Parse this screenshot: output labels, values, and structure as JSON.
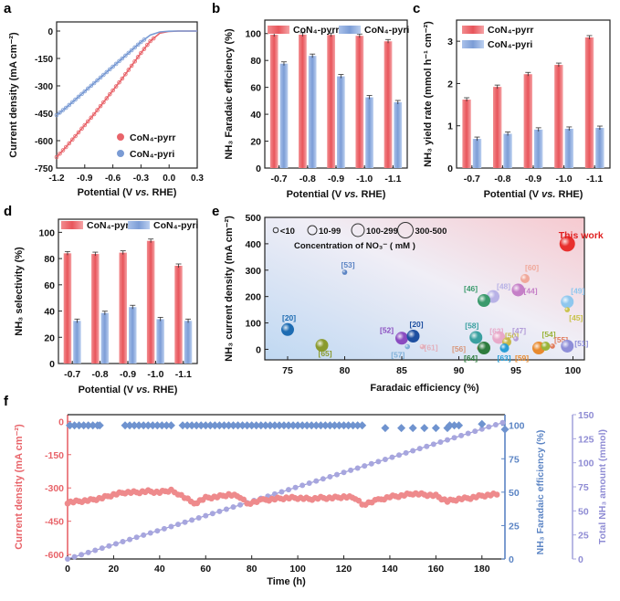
{
  "colors": {
    "red": "#E8646A",
    "blue": "#7A9BD4",
    "lavender": "#A7A6DE",
    "deepblue": "#5B84C4",
    "axis": "#222222"
  },
  "chart_data": [
    {
      "panel": "a",
      "type": "line",
      "xlabel": "Potential (V vs. RHE)",
      "ylabel": "Current density (mA cm⁻²)",
      "xlim": [
        -1.2,
        0.3
      ],
      "ylim": [
        -750,
        50
      ],
      "xticks": [
        -1.2,
        -0.9,
        -0.6,
        -0.3,
        0.0,
        0.3
      ],
      "yticks": [
        0,
        -150,
        -300,
        -450,
        -600,
        -750
      ],
      "series": [
        {
          "name": "CoN₄-pyrr",
          "x": [
            -1.2,
            -1.1,
            -1.0,
            -0.9,
            -0.8,
            -0.7,
            -0.6,
            -0.5,
            -0.4,
            -0.3,
            -0.2,
            -0.1,
            0.0,
            0.1,
            0.2,
            0.3
          ],
          "y": [
            -690,
            -635,
            -575,
            -515,
            -455,
            -390,
            -325,
            -260,
            -190,
            -120,
            -55,
            -12,
            -2,
            0,
            0,
            0
          ]
        },
        {
          "name": "CoN₄-pyri",
          "x": [
            -1.2,
            -1.1,
            -1.0,
            -0.9,
            -0.8,
            -0.7,
            -0.6,
            -0.5,
            -0.4,
            -0.3,
            -0.2,
            -0.1,
            0.0,
            0.1,
            0.2,
            0.3
          ],
          "y": [
            -460,
            -420,
            -375,
            -330,
            -285,
            -240,
            -195,
            -150,
            -105,
            -60,
            -22,
            -5,
            -1,
            0,
            0,
            0
          ]
        }
      ]
    },
    {
      "panel": "b",
      "type": "bar",
      "categories": [
        "-0.7",
        "-0.8",
        "-0.9",
        "-1.0",
        "-1.1"
      ],
      "xlabel": "Potential (V vs. RHE)",
      "ylabel": "NH₃ Faradaic efficiency (%)",
      "ylim": [
        0,
        110
      ],
      "yticks": [
        0,
        20,
        40,
        60,
        80,
        100
      ],
      "series": [
        {
          "name": "CoN₄-pyrr",
          "values": [
            99.1,
            99.2,
            99.0,
            98.3,
            94.2
          ]
        },
        {
          "name": "CoN₄-pyri",
          "values": [
            77.6,
            83.4,
            68.2,
            52.6,
            48.9
          ]
        }
      ]
    },
    {
      "panel": "c",
      "type": "bar",
      "categories": [
        "-0.7",
        "-0.8",
        "-0.9",
        "-1.0",
        "-1.1"
      ],
      "xlabel": "Potential (V vs. RHE)",
      "ylabel": "NH₃ yield rate (mmol h⁻¹ cm⁻²)",
      "ylim": [
        0,
        3.5
      ],
      "yticks": [
        0,
        1,
        2,
        3
      ],
      "series": [
        {
          "name": "CoN₄-pyrr",
          "values": [
            1.62,
            1.92,
            2.22,
            2.44,
            3.09
          ]
        },
        {
          "name": "CoN₄-pyri",
          "values": [
            0.69,
            0.81,
            0.91,
            0.93,
            0.95
          ]
        }
      ]
    },
    {
      "panel": "d",
      "type": "bar",
      "categories": [
        "-0.7",
        "-0.8",
        "-0.9",
        "-1.0",
        "-1.1"
      ],
      "xlabel": "Potential (V vs. RHE)",
      "ylabel": "NH₃ selectivity (%)",
      "ylim": [
        0,
        110
      ],
      "yticks": [
        0,
        20,
        40,
        60,
        80,
        100
      ],
      "series": [
        {
          "name": "CoN₄-pyrr",
          "values": [
            84.0,
            83.5,
            84.5,
            93.5,
            74.5
          ]
        },
        {
          "name": "CoN₄-pyri",
          "values": [
            32.5,
            38.5,
            43.0,
            33.8,
            32.5
          ]
        }
      ]
    },
    {
      "panel": "e",
      "type": "scatter",
      "xlabel": "Faradaic efficiency (%)",
      "ylabel": "NH₃ current density (mA cm⁻²)",
      "xlim": [
        73,
        101
      ],
      "ylim": [
        -40,
        500
      ],
      "xticks": [
        75,
        80,
        85,
        90,
        95,
        100
      ],
      "yticks": [
        0,
        100,
        200,
        300,
        400,
        500
      ],
      "size_legend": [
        "<10",
        "10-99",
        "100-299",
        "300-500"
      ],
      "size_legend_title": "Concentration of NO₃⁻ ( mM )",
      "points": [
        {
          "label": "This work",
          "x": 99.5,
          "y": 400,
          "size": 4,
          "color": "#E8302E"
        },
        {
          "label": "[53]",
          "x": 80,
          "y": 292,
          "size": 1,
          "color": "#5B84C4"
        },
        {
          "label": "[60]",
          "x": 95.8,
          "y": 268,
          "size": 2,
          "color": "#F0A89A"
        },
        {
          "label": "[48]",
          "x": 93.0,
          "y": 200,
          "size": 3,
          "color": "#B8B2E6"
        },
        {
          "label": "[46]",
          "x": 92.2,
          "y": 185,
          "size": 3,
          "color": "#3A9A6C"
        },
        {
          "label": "[44]",
          "x": 95.2,
          "y": 225,
          "size": 3,
          "color": "#C57FC7"
        },
        {
          "label": "[49]",
          "x": 99.5,
          "y": 180,
          "size": 3,
          "color": "#8FC7EE"
        },
        {
          "label": "[45]",
          "x": 99.5,
          "y": 150,
          "size": 1,
          "color": "#C9C24A"
        },
        {
          "label": "[20]",
          "x": 75.0,
          "y": 75,
          "size": 3,
          "color": "#1E6CB2"
        },
        {
          "label": "[65]",
          "x": 78.0,
          "y": 15,
          "size": 3,
          "color": "#8A9A2E"
        },
        {
          "label": "[52]",
          "x": 85.0,
          "y": 42,
          "size": 3,
          "color": "#8A4CC0"
        },
        {
          "label": "[20]",
          "x": 86.0,
          "y": 50,
          "size": 3,
          "color": "#1E4FA0"
        },
        {
          "label": "[57]",
          "x": 85.5,
          "y": 10,
          "size": 1,
          "color": "#7FB0D8"
        },
        {
          "label": "[61]",
          "x": 86.8,
          "y": 10,
          "size": 1,
          "color": "#E2B0BC"
        },
        {
          "label": "[58]",
          "x": 91.5,
          "y": 45,
          "size": 3,
          "color": "#3AA0A0"
        },
        {
          "label": "[62]",
          "x": 93.5,
          "y": 45,
          "size": 3,
          "color": "#E8A9C9"
        },
        {
          "label": "[50]",
          "x": 94.2,
          "y": 28,
          "size": 2,
          "color": "#C8B84A"
        },
        {
          "label": "[47]",
          "x": 95.0,
          "y": 40,
          "size": 1,
          "color": "#B29BD8"
        },
        {
          "label": "[56]",
          "x": 91.8,
          "y": 5,
          "size": 1,
          "color": "#D8967A"
        },
        {
          "label": "[64]",
          "x": 92.2,
          "y": 5,
          "size": 3,
          "color": "#2E7C3E"
        },
        {
          "label": "[63]",
          "x": 94.0,
          "y": 5,
          "size": 2,
          "color": "#2A9ED6"
        },
        {
          "label": "[59]",
          "x": 97.0,
          "y": 5,
          "size": 3,
          "color": "#E88A2E"
        },
        {
          "label": "[54]",
          "x": 97.6,
          "y": 12,
          "size": 2,
          "color": "#9AB43A"
        },
        {
          "label": "[55]",
          "x": 98.2,
          "y": 12,
          "size": 1,
          "color": "#E07A5A"
        },
        {
          "label": "[51]",
          "x": 99.5,
          "y": 12,
          "size": 3,
          "color": "#8E8ED8"
        }
      ]
    },
    {
      "panel": "f",
      "type": "scatter",
      "xlabel": "Time (h)",
      "ylabel_left": "Current density (mA cm⁻²)",
      "ylabel_right1": "NH₃ Faradaic efficiency (%)",
      "ylabel_right2": "Total NH₃ amount (mmol)",
      "xlim": [
        0,
        190
      ],
      "xticks": [
        0,
        20,
        40,
        60,
        80,
        100,
        120,
        140,
        160,
        180
      ],
      "ylim_left": [
        -620,
        30
      ],
      "yticks_left": [
        0,
        -150,
        -300,
        -450,
        -600
      ],
      "ylim_right1": [
        0,
        108
      ],
      "yticks_right1": [
        0,
        25,
        50,
        75,
        100
      ],
      "ylim_right2": [
        0,
        150
      ],
      "yticks_right2": [
        0,
        25,
        50,
        75,
        100,
        125,
        150
      ],
      "current_density": {
        "name": "Current density",
        "t": [
          0,
          5,
          10,
          15,
          20,
          25,
          30,
          35,
          40,
          45,
          48,
          55,
          60,
          65,
          70,
          75,
          78,
          85,
          90,
          95,
          100,
          105,
          110,
          115,
          120,
          125,
          128,
          135,
          140,
          145,
          150,
          155,
          160,
          165,
          170,
          175,
          180,
          185,
          188
        ],
        "y": [
          -365,
          -360,
          -355,
          -345,
          -330,
          -320,
          -320,
          -315,
          -320,
          -310,
          -325,
          -370,
          -345,
          -340,
          -330,
          -340,
          -370,
          -355,
          -350,
          -345,
          -345,
          -350,
          -345,
          -345,
          -340,
          -345,
          -375,
          -355,
          -340,
          -335,
          -325,
          -330,
          -335,
          -360,
          -350,
          -345,
          -335,
          -330,
          -330
        ]
      },
      "faradaic_efficiency": {
        "name": "NH₃ Faradaic efficiency",
        "t": [
          1,
          3,
          5,
          7,
          9,
          11,
          13,
          14,
          25,
          27,
          29,
          31,
          33,
          35,
          37,
          39,
          41,
          43,
          45,
          50,
          52,
          54,
          56,
          58,
          60,
          62,
          64,
          66,
          68,
          70,
          72,
          74,
          76,
          78,
          80,
          82,
          84,
          86,
          88,
          90,
          92,
          94,
          96,
          98,
          100,
          102,
          104,
          106,
          108,
          110,
          112,
          114,
          116,
          118,
          120,
          122,
          124,
          126,
          128,
          138,
          145,
          150,
          155,
          160,
          165,
          166,
          168,
          170,
          180,
          190
        ],
        "y": [
          100,
          100,
          100,
          100,
          100,
          100,
          100,
          100,
          100,
          100,
          100,
          100,
          100,
          100,
          100,
          100,
          100,
          100,
          100,
          100,
          100,
          100,
          100,
          100,
          100,
          100,
          100,
          100,
          100,
          100,
          100,
          100,
          100,
          100,
          100,
          100,
          100,
          100,
          100,
          100,
          100,
          100,
          100,
          100,
          100,
          100,
          100,
          100,
          100,
          100,
          100,
          100,
          100,
          100,
          100,
          100,
          100,
          100,
          100,
          98,
          98,
          98,
          98,
          98,
          98,
          100,
          100,
          100,
          101,
          97
        ]
      },
      "total_nh3": {
        "name": "Total NH₃ amount",
        "t": [
          0,
          10,
          20,
          30,
          40,
          50,
          60,
          70,
          80,
          90,
          100,
          110,
          120,
          130,
          140,
          150,
          160,
          170,
          180,
          190
        ],
        "y": [
          0,
          7.5,
          15,
          22.5,
          30,
          37.5,
          45,
          52.5,
          60,
          67.5,
          75,
          82.5,
          90,
          97.5,
          105,
          112.5,
          120,
          127.5,
          135,
          142.5
        ]
      }
    }
  ],
  "panels": {
    "a": {
      "letter": "a",
      "xlabel": "Potential (V vs. RHE)",
      "ylabel": "Current density (mA cm⁻²)",
      "legend": [
        "CoN₄-pyrr",
        "CoN₄-pyri"
      ]
    },
    "b": {
      "letter": "b",
      "xlabel": "Potential (V vs. RHE)",
      "ylabel": "NH₃ Faradaic efficiency (%)",
      "legend": [
        "CoN₄-pyrr",
        "CoN₄-pyri"
      ]
    },
    "c": {
      "letter": "c",
      "xlabel": "Potential (V vs. RHE)",
      "ylabel": "NH₃ yield rate (mmol h⁻¹ cm⁻²)",
      "legend": [
        "CoN₄-pyrr",
        "CoN₄-pyri"
      ]
    },
    "d": {
      "letter": "d",
      "xlabel": "Potential (V vs. RHE)",
      "ylabel": "NH₃ selectivity (%)",
      "legend": [
        "CoN₄-pyrr",
        "CoN₄-pyri"
      ]
    },
    "e": {
      "letter": "e",
      "xlabel": "Faradaic efficiency (%)",
      "ylabel": "NH₃ current density (mA cm⁻²)",
      "legend_title": "Concentration of NO₃⁻ ( mM )"
    },
    "f": {
      "letter": "f",
      "xlabel": "Time (h)",
      "ylabel_left": "Current density (mA cm⁻²)",
      "ylabel_right1": "NH₃ Faradaic efficiency (%)",
      "ylabel_right2": "Total NH₃ amount (mmol)"
    }
  }
}
